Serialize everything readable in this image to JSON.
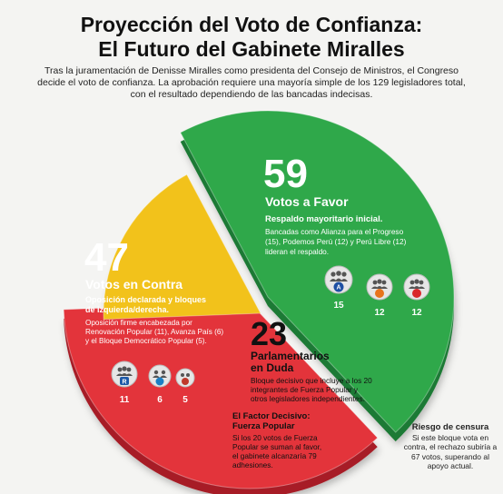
{
  "header": {
    "title_line1": "Proyección del Voto de Confianza:",
    "title_line2": "El Futuro del Gabinete Miralles",
    "intro": "Tras la juramentación de Denisse Miralles como presidenta del Consejo de Ministros, el Congreso decide el voto de confianza. La aprobación requiere una mayoría simple de los 129 legisladores total, con el resultado dependiendo de las bancadas indecisas."
  },
  "colors": {
    "favor": "#2fa84a",
    "contra": "#e3343b",
    "duda": "#f2c21b",
    "favor_shade": "#1d7a34",
    "contra_shade": "#a71f27",
    "duda_shade": "#b88d0c"
  },
  "chart_data": {
    "type": "pie",
    "total": 129,
    "categories": [
      "Votos a Favor",
      "Votos en Contra",
      "Parlamentarios en Duda"
    ],
    "values": [
      59,
      47,
      23
    ]
  },
  "favor": {
    "number": "59",
    "label": "Votos a Favor",
    "subtitle": "Respaldo mayoritario inicial.",
    "desc_lines": [
      "Bancadas como Alianza para el Progreso",
      "(15), Podemos Perú (12) y Perú Libre (12)",
      "lideran el respaldo."
    ],
    "blocs": [
      {
        "icon": "alianza-para-el-progreso-logo-icon",
        "count": "15",
        "color": "#1e4fa3"
      },
      {
        "icon": "podemos-peru-logo-icon",
        "count": "12",
        "color": "#e8741c"
      },
      {
        "icon": "peru-libre-logo-icon",
        "count": "12",
        "color": "#d9262a"
      }
    ]
  },
  "contra": {
    "number": "47",
    "label": "Votos en Contra",
    "subtitle_lines": [
      "Oposición declarada y bloques",
      "de izquierda/derecha."
    ],
    "desc_lines": [
      "Oposición firme encabezada por",
      "Renovación Popular (11), Avanza País (6)",
      "y el Bloque Democrático Popular (5)."
    ],
    "blocs": [
      {
        "icon": "renovacion-popular-logo-icon",
        "count": "11",
        "color": "#1d5aa8"
      },
      {
        "icon": "avanza-pais-logo-icon",
        "count": "6",
        "color": "#1b7fc4"
      },
      {
        "icon": "bloque-democratico-popular-logo-icon",
        "count": "5",
        "color": "#c0392b"
      }
    ]
  },
  "duda": {
    "number": "23",
    "label_lines": [
      "Parlamentarios",
      "en Duda"
    ],
    "desc_lines": [
      "Bloque decisivo que incluye a los 20",
      "integrantes de Fuerza Popular y",
      "otros legisladores independientes."
    ],
    "factor_title_lines": [
      "El Factor Decisivo:",
      "Fuerza Popular"
    ],
    "factor_lines": [
      "Si los 20 votos de Fuerza",
      "Popular se suman al favor,",
      "el gabinete alcanzaría 79",
      "adhesiones."
    ]
  },
  "risk": {
    "title": "Riesgo de censura",
    "text": "Si este bloque vota en contra, el rechazo subiría a 67 votos, superando al apoyo actual."
  }
}
